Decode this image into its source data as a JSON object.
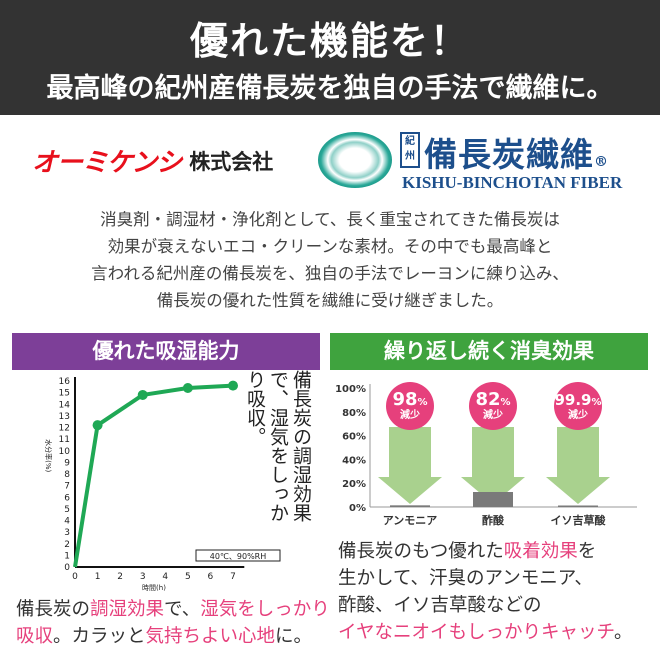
{
  "header": {
    "title": "優れた機能を！",
    "subtitle": "最高峰の紀州産備長炭を独自の手法で繊維に。"
  },
  "logos": {
    "company_katakana": "オーミケンシ",
    "company_suffix": "株式会社",
    "brand_mark": "紀州",
    "brand": "備長炭繊維",
    "brand_reg": "®",
    "brand_en": "KISHU-BINCHOTAN FIBER"
  },
  "intro": [
    "消臭剤・調湿材・浄化剤として、長く重宝されてきた備長炭は",
    "効果が衰えないエコ・クリーンな素材。その中でも最高峰と",
    "言われる紀州産の備長炭を、独自の手法でレーヨンに練り込み、",
    "備長炭の優れた性質を繊維に受け継ぎました。"
  ],
  "sections": {
    "left": {
      "title": "優れた吸湿能力",
      "callout": [
        "備長炭の調湿効果で、",
        "湿気をしっかり吸収。"
      ],
      "caption": [
        [
          {
            "t": "備長炭の",
            "p": false
          },
          {
            "t": "調湿効果",
            "p": true
          },
          {
            "t": "で、",
            "p": false
          },
          {
            "t": "湿気をしっかり",
            "p": true
          }
        ],
        [
          {
            "t": "吸収",
            "p": true
          },
          {
            "t": "。カラッと",
            "p": false
          },
          {
            "t": "気持ちよい心地",
            "p": true
          },
          {
            "t": "に。",
            "p": false
          }
        ]
      ]
    },
    "right": {
      "title": "繰り返し続く消臭効果",
      "caption": [
        [
          {
            "t": "備長炭のもつ優れた",
            "p": false
          },
          {
            "t": "吸着効果",
            "p": true
          },
          {
            "t": "を",
            "p": false
          }
        ],
        [
          {
            "t": "生かして、汗臭のアンモニア、",
            "p": false
          }
        ],
        [
          {
            "t": "酢酸、イソ吉草酸などの",
            "p": false
          }
        ],
        [
          {
            "t": "イヤなニオイもしっかりキャッチ",
            "p": true
          },
          {
            "t": "。",
            "p": false
          }
        ]
      ]
    }
  },
  "colors": {
    "accent_pink": "#e6407c",
    "line_green": "#1fa855",
    "arrow_green": "#a9d18e",
    "bar_gray": "#7a7a7a",
    "purple": "#7d3f98",
    "green": "#3fa33e"
  },
  "chart_data": [
    {
      "type": "line",
      "xlabel": "時間(h)",
      "ylabel": "水分率(%)",
      "x": [
        0,
        1,
        3,
        5,
        7
      ],
      "y": [
        0,
        12.2,
        14.8,
        15.4,
        15.6
      ],
      "xticks": [
        "0",
        "1",
        "2",
        "3",
        "4",
        "5",
        "6",
        "7"
      ],
      "yticks": [
        "0",
        "1",
        "2",
        "3",
        "4",
        "5",
        "6",
        "7",
        "8",
        "9",
        "10",
        "11",
        "12",
        "13",
        "14",
        "15",
        "16"
      ],
      "xlim": [
        0,
        7
      ],
      "ylim": [
        0,
        16
      ],
      "condition": "40℃、90%RH",
      "grid": false
    },
    {
      "type": "bar",
      "categories": [
        "アンモニア",
        "酢酸",
        "イソ吉草酸"
      ],
      "values": [
        2,
        18,
        0.1
      ],
      "reductions": [
        {
          "value": "98",
          "unit": "%",
          "label": "減少"
        },
        {
          "value": "82",
          "unit": "%",
          "label": "減少"
        },
        {
          "value": "99.9",
          "unit": "%",
          "label": "減少"
        }
      ],
      "yticks": [
        "0%",
        "20%",
        "40%",
        "60%",
        "80%",
        "100%"
      ],
      "ylim": [
        0,
        100
      ],
      "grid": false
    }
  ]
}
